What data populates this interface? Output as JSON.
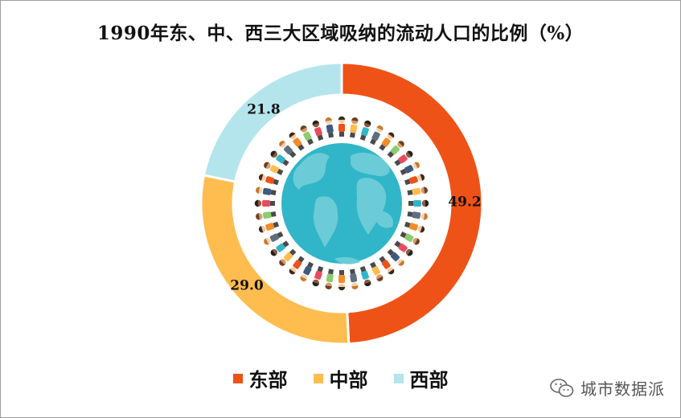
{
  "title": "1990年东、中、西三大区域吸纳的流动人口的比例（%）",
  "chart_data": {
    "type": "pie",
    "variant": "donut",
    "title": "1990年东、中、西三大区域吸纳的流动人口的比例（%）",
    "categories": [
      "东部",
      "中部",
      "西部"
    ],
    "values": [
      49.2,
      29.0,
      21.8
    ],
    "value_labels": [
      "49.2",
      "29.0",
      "21.8"
    ],
    "colors": [
      "#EE5217",
      "#FFBD4F",
      "#B4E5EC"
    ],
    "legend_position": "bottom",
    "center_decoration": "globe-with-people-ring"
  },
  "legend": [
    {
      "label": "东部",
      "color": "#EE5217"
    },
    {
      "label": "中部",
      "color": "#FFBD4F"
    },
    {
      "label": "西部",
      "color": "#B4E5EC"
    }
  ],
  "watermark": {
    "text": "城市数据派",
    "icon": "wechat-icon"
  }
}
